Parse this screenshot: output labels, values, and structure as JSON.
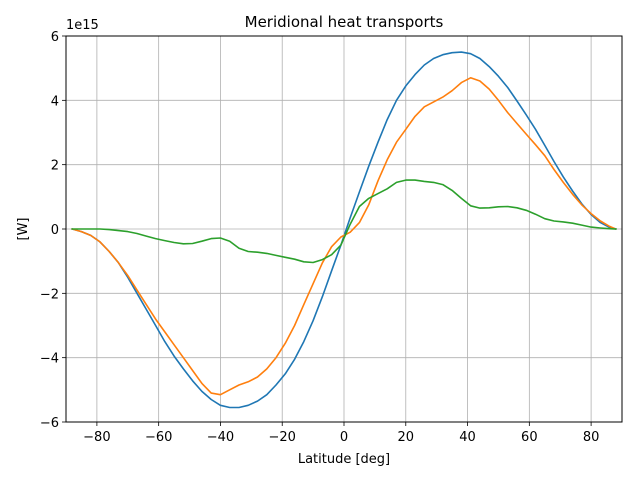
{
  "chart_data": {
    "type": "line",
    "title": "Meridional heat transports",
    "xlabel": "Latitude [deg]",
    "ylabel": "[W]",
    "y_offset_text": "1e15",
    "xlim": [
      -90,
      90
    ],
    "ylim": [
      -6,
      6
    ],
    "grid": true,
    "x_ticks": [
      -80,
      -60,
      -40,
      -20,
      0,
      20,
      40,
      60,
      80
    ],
    "x_tick_labels": [
      "−80",
      "−60",
      "−40",
      "−20",
      "0",
      "20",
      "40",
      "60",
      "80"
    ],
    "y_ticks": [
      -6,
      -4,
      -2,
      0,
      2,
      4,
      6
    ],
    "y_tick_labels": [
      "−6",
      "−4",
      "−2",
      "0",
      "2",
      "4",
      "6"
    ],
    "series": [
      {
        "name": "blue",
        "color": "#1f77b4",
        "x": [
          -88,
          -85,
          -82,
          -79,
          -76,
          -73,
          -70,
          -67,
          -64,
          -61,
          -58,
          -55,
          -52,
          -49,
          -46,
          -43,
          -40,
          -37,
          -34,
          -31,
          -28,
          -25,
          -22,
          -19,
          -16,
          -13,
          -10,
          -7,
          -4,
          -1,
          2,
          5,
          8,
          11,
          14,
          17,
          20,
          23,
          26,
          29,
          32,
          35,
          38,
          41,
          44,
          47,
          50,
          53,
          56,
          59,
          62,
          65,
          68,
          71,
          74,
          77,
          80,
          83,
          86,
          88
        ],
        "values": [
          0.0,
          -0.08,
          -0.2,
          -0.4,
          -0.7,
          -1.05,
          -1.5,
          -2.0,
          -2.5,
          -3.0,
          -3.5,
          -3.95,
          -4.35,
          -4.72,
          -5.05,
          -5.3,
          -5.48,
          -5.55,
          -5.55,
          -5.48,
          -5.35,
          -5.15,
          -4.85,
          -4.5,
          -4.05,
          -3.5,
          -2.85,
          -2.1,
          -1.3,
          -0.5,
          0.35,
          1.15,
          1.95,
          2.7,
          3.4,
          4.0,
          4.45,
          4.8,
          5.1,
          5.3,
          5.42,
          5.48,
          5.5,
          5.45,
          5.3,
          5.05,
          4.75,
          4.4,
          3.98,
          3.55,
          3.1,
          2.6,
          2.1,
          1.62,
          1.18,
          0.78,
          0.45,
          0.2,
          0.05,
          0.0
        ]
      },
      {
        "name": "orange",
        "color": "#ff7f0e",
        "x": [
          -88,
          -85,
          -82,
          -79,
          -76,
          -73,
          -70,
          -67,
          -64,
          -61,
          -58,
          -55,
          -52,
          -49,
          -46,
          -43,
          -40,
          -37,
          -34,
          -31,
          -28,
          -25,
          -22,
          -19,
          -16,
          -13,
          -10,
          -7,
          -4,
          -1,
          2,
          5,
          8,
          11,
          14,
          17,
          20,
          23,
          26,
          29,
          32,
          35,
          38,
          41,
          44,
          47,
          50,
          53,
          56,
          59,
          62,
          65,
          68,
          71,
          74,
          77,
          80,
          83,
          86,
          88
        ],
        "values": [
          0.0,
          -0.08,
          -0.2,
          -0.4,
          -0.7,
          -1.05,
          -1.45,
          -1.9,
          -2.35,
          -2.8,
          -3.2,
          -3.6,
          -4.0,
          -4.4,
          -4.8,
          -5.1,
          -5.15,
          -5.0,
          -4.85,
          -4.75,
          -4.6,
          -4.35,
          -4.0,
          -3.55,
          -3.0,
          -2.35,
          -1.7,
          -1.05,
          -0.55,
          -0.25,
          -0.1,
          0.2,
          0.75,
          1.5,
          2.15,
          2.7,
          3.1,
          3.5,
          3.8,
          3.95,
          4.1,
          4.3,
          4.55,
          4.7,
          4.6,
          4.35,
          4.0,
          3.62,
          3.28,
          2.95,
          2.62,
          2.28,
          1.85,
          1.45,
          1.08,
          0.75,
          0.48,
          0.25,
          0.08,
          0.0
        ]
      },
      {
        "name": "green",
        "color": "#2ca02c",
        "x": [
          -88,
          -85,
          -82,
          -79,
          -76,
          -73,
          -70,
          -67,
          -64,
          -61,
          -58,
          -55,
          -52,
          -49,
          -46,
          -43,
          -40,
          -37,
          -34,
          -31,
          -28,
          -25,
          -22,
          -19,
          -16,
          -13,
          -10,
          -7,
          -4,
          -1,
          2,
          5,
          8,
          11,
          14,
          17,
          20,
          23,
          26,
          29,
          32,
          35,
          38,
          41,
          44,
          47,
          50,
          53,
          56,
          59,
          62,
          65,
          68,
          71,
          74,
          77,
          80,
          83,
          86,
          88
        ],
        "values": [
          0.0,
          0.0,
          0.0,
          0.0,
          -0.02,
          -0.05,
          -0.08,
          -0.14,
          -0.22,
          -0.3,
          -0.36,
          -0.42,
          -0.46,
          -0.45,
          -0.38,
          -0.3,
          -0.28,
          -0.38,
          -0.6,
          -0.7,
          -0.72,
          -0.76,
          -0.82,
          -0.88,
          -0.94,
          -1.02,
          -1.04,
          -0.95,
          -0.8,
          -0.5,
          0.15,
          0.7,
          0.95,
          1.1,
          1.25,
          1.45,
          1.52,
          1.52,
          1.48,
          1.45,
          1.38,
          1.2,
          0.95,
          0.72,
          0.65,
          0.66,
          0.69,
          0.7,
          0.66,
          0.58,
          0.46,
          0.32,
          0.25,
          0.22,
          0.18,
          0.12,
          0.06,
          0.03,
          0.01,
          0.0
        ]
      }
    ]
  }
}
